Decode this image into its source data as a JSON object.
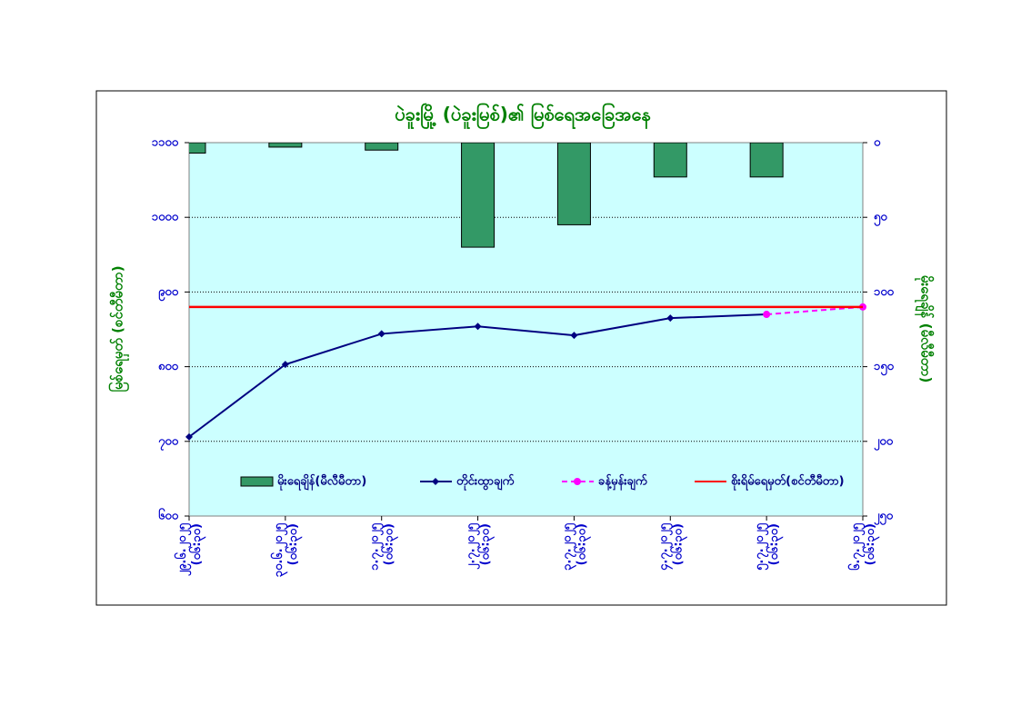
{
  "chart_data": {
    "type": "bar-line",
    "title": "ပဲခူးမြို့ (ပဲခူးမြစ်)၏ မြစ်ရေအခြေအနေ",
    "ylabel": "မြစ်ရေမှတ် (စင်တီမီတာ)",
    "y2label": "မိုးရေချိန် (မီလီမီတာ)",
    "categories": [
      "၂၉.၆.၂၀၂၅ (၀၆:၃၀)",
      "၃၀.၆.၂၀၂၅ (၀၆:၃၀)",
      "၁.၇.၂၀၂၅ (၀၆:၃၀)",
      "၂.၇.၂၀၂၅ (၀၆:၃၀)",
      "၃.၇.၂၀၂၅ (၀၆:၃၀)",
      "၄.၇.၂၀၂၅ (၀၆:၃၀)",
      "၅.၇.၂၀၂၅ (၀၆:၃၀)",
      "၆.၇.၂၀၂၅ (၀၆:၃၀)"
    ],
    "ylim": [
      600,
      1100
    ],
    "yticks": [
      {
        "value": 600,
        "label": "၆၀၀"
      },
      {
        "value": 700,
        "label": "၇၀၀"
      },
      {
        "value": 800,
        "label": "၈၀၀"
      },
      {
        "value": 900,
        "label": "၉၀၀"
      },
      {
        "value": 1000,
        "label": "၁၀၀၀"
      },
      {
        "value": 1100,
        "label": "၁၁၀၀"
      }
    ],
    "y2lim": [
      250,
      0
    ],
    "y2ticks": [
      {
        "value": 250,
        "label": "၂၅၀"
      },
      {
        "value": 200,
        "label": "၂၀၀"
      },
      {
        "value": 150,
        "label": "၁၅၀"
      },
      {
        "value": 100,
        "label": "၁၀၀"
      },
      {
        "value": 50,
        "label": "၅၀"
      },
      {
        "value": 0,
        "label": "၀"
      }
    ],
    "grid": true,
    "series": [
      {
        "name": "မိုးရေချိန်(မီလီမီတာ)",
        "type": "bar",
        "axis": "y2",
        "color": "#339966",
        "values": [
          7,
          3,
          5,
          70,
          55,
          23,
          23,
          null
        ]
      },
      {
        "name": "တိုင်းထွာချက်",
        "type": "line",
        "color": "#000080",
        "values": [
          706,
          803,
          844,
          854,
          842,
          865,
          870,
          null
        ]
      },
      {
        "name": "ခန့်မှန်းချက်",
        "type": "dashed-line",
        "color": "#ff00ff",
        "values": [
          null,
          null,
          null,
          null,
          null,
          null,
          870,
          880
        ]
      },
      {
        "name": "စိုးရိမ်ရေမှတ်(စင်တီမီတာ)",
        "type": "plain-line",
        "color": "#ff0000",
        "values": [
          880,
          880,
          880,
          880,
          880,
          880,
          880,
          880
        ]
      }
    ]
  }
}
